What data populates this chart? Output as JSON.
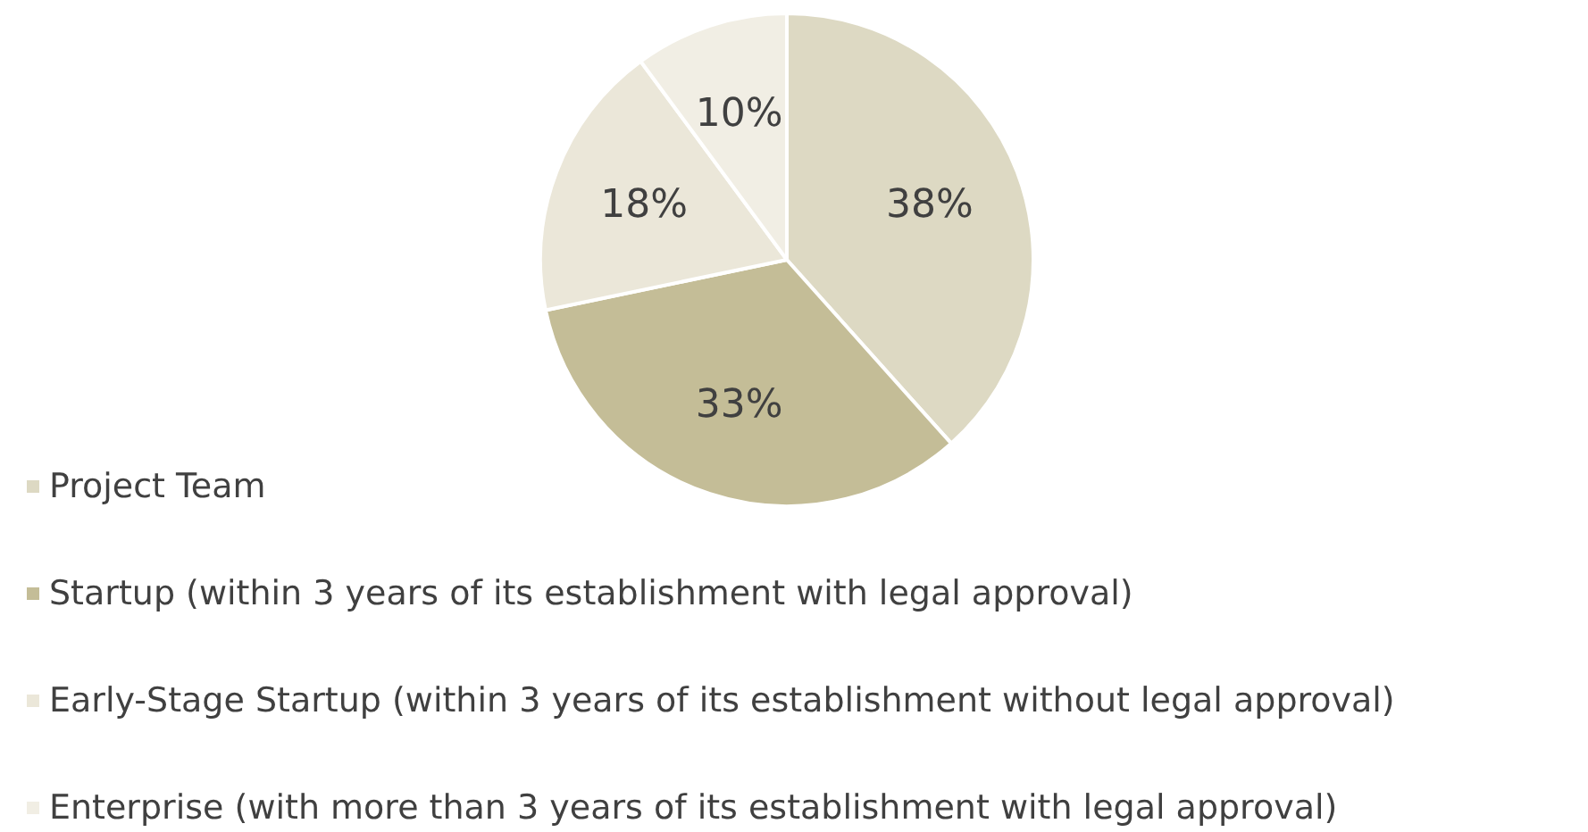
{
  "chart_data": {
    "type": "pie",
    "categories": [
      "Project Team",
      "Startup (within 3 years of its establishment with legal approval)",
      "Early-Stage Startup (within 3 years of its establishment without legal approval)",
      "Enterprise (with more than 3 years of its establishment with legal approval)"
    ],
    "values": [
      38,
      33,
      18,
      10
    ],
    "colors": [
      "#ddd9c3",
      "#c4bd97",
      "#ebe7d9",
      "#f1eee4"
    ],
    "value_labels": [
      "38%",
      "33%",
      "18%",
      "10%"
    ],
    "legend": "bottom"
  }
}
